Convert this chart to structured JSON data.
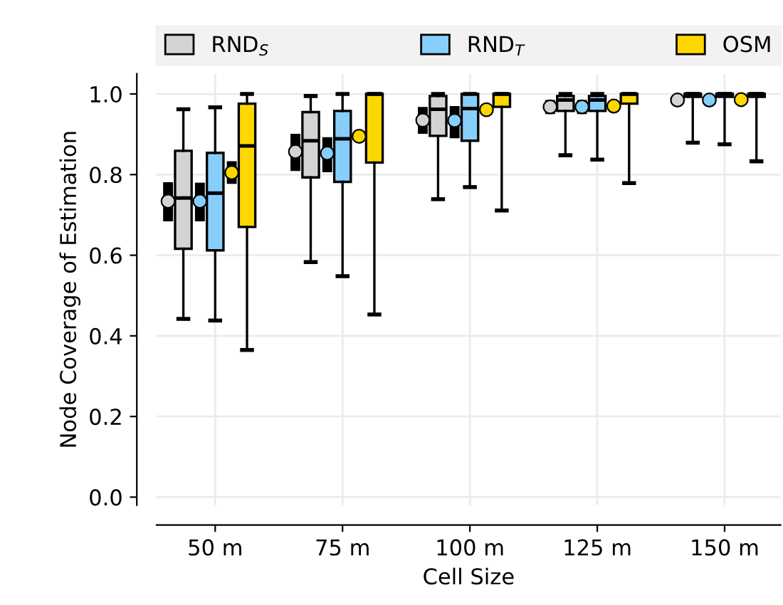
{
  "chart_data": {
    "type": "box",
    "xlabel": "Cell Size",
    "ylabel": "Node Coverage of Estimation",
    "categories": [
      "50 m",
      "75 m",
      "100 m",
      "125 m",
      "150 m"
    ],
    "ylim": [
      -0.02,
      1.05
    ],
    "yticks": [
      {
        "value": 0,
        "label": "0.0"
      },
      0.2,
      0.4,
      0.6,
      0.8,
      {
        "value": 1,
        "label": "1.0"
      }
    ],
    "grid": true,
    "legend": "top",
    "marker": "circle",
    "series": [
      {
        "name": "RND$_{S}$",
        "color": "#d3d3d3",
        "boxes": [
          {
            "low": 0.442,
            "q1": 0.616,
            "median": 0.742,
            "q3": 0.859,
            "high": 0.962
          },
          {
            "low": 0.583,
            "q1": 0.793,
            "median": 0.884,
            "q3": 0.955,
            "high": 0.995
          },
          {
            "low": 0.739,
            "q1": 0.896,
            "median": 0.962,
            "q3": 0.995,
            "high": 1.0
          },
          {
            "low": 0.848,
            "q1": 0.958,
            "median": 0.985,
            "q3": 0.995,
            "high": 1.0
          },
          {
            "low": 0.879,
            "q1": 0.993,
            "median": 1.0,
            "q3": 1.0,
            "high": 1.0
          }
        ]
      },
      {
        "name": "RND$_{T}$",
        "color": "#87cefa",
        "boxes": [
          {
            "low": 0.438,
            "q1": 0.612,
            "median": 0.754,
            "q3": 0.854,
            "high": 0.967
          },
          {
            "low": 0.548,
            "q1": 0.782,
            "median": 0.889,
            "q3": 0.958,
            "high": 1.0
          },
          {
            "low": 0.769,
            "q1": 0.884,
            "median": 0.964,
            "q3": 1.0,
            "high": 1.0
          },
          {
            "low": 0.837,
            "q1": 0.958,
            "median": 0.985,
            "q3": 0.995,
            "high": 1.0
          },
          {
            "low": 0.875,
            "q1": 0.993,
            "median": 1.0,
            "q3": 1.0,
            "high": 1.0
          }
        ]
      },
      {
        "name": "OSM",
        "color": "#ffd700",
        "boxes": [
          {
            "low": 0.365,
            "q1": 0.67,
            "median": 0.871,
            "q3": 0.976,
            "high": 1.0
          },
          {
            "low": 0.453,
            "q1": 0.83,
            "median": 1.0,
            "q3": 1.0,
            "high": 1.0
          },
          {
            "low": 0.711,
            "q1": 0.968,
            "median": 1.0,
            "q3": 1.0,
            "high": 1.0
          },
          {
            "low": 0.779,
            "q1": 0.976,
            "median": 1.0,
            "q3": 1.0,
            "high": 1.0
          },
          {
            "low": 0.833,
            "q1": 0.993,
            "median": 1.0,
            "q3": 1.0,
            "high": 1.0
          }
        ]
      },
      {
        "type": "scatter",
        "color": "#d3d3d3",
        "values": [
          0.734,
          0.857,
          0.935,
          0.968,
          0.985
        ],
        "errors": [
          [
            0.684,
            0.781
          ],
          [
            0.809,
            0.901
          ],
          [
            0.901,
            0.968
          ],
          [
            0.95,
            0.985
          ],
          null
        ]
      },
      {
        "type": "scatter",
        "color": "#87cefa",
        "values": [
          0.734,
          0.853,
          0.934,
          0.968,
          0.985
        ],
        "errors": [
          [
            0.684,
            0.78
          ],
          [
            0.806,
            0.893
          ],
          [
            0.89,
            0.97
          ],
          [
            0.95,
            0.985
          ],
          null
        ]
      },
      {
        "type": "scatter",
        "color": "#ffd700",
        "values": [
          0.805,
          0.895,
          0.961,
          0.97,
          0.986
        ],
        "errors": [
          [
            0.777,
            0.833
          ],
          null,
          null,
          null,
          null
        ]
      }
    ]
  }
}
